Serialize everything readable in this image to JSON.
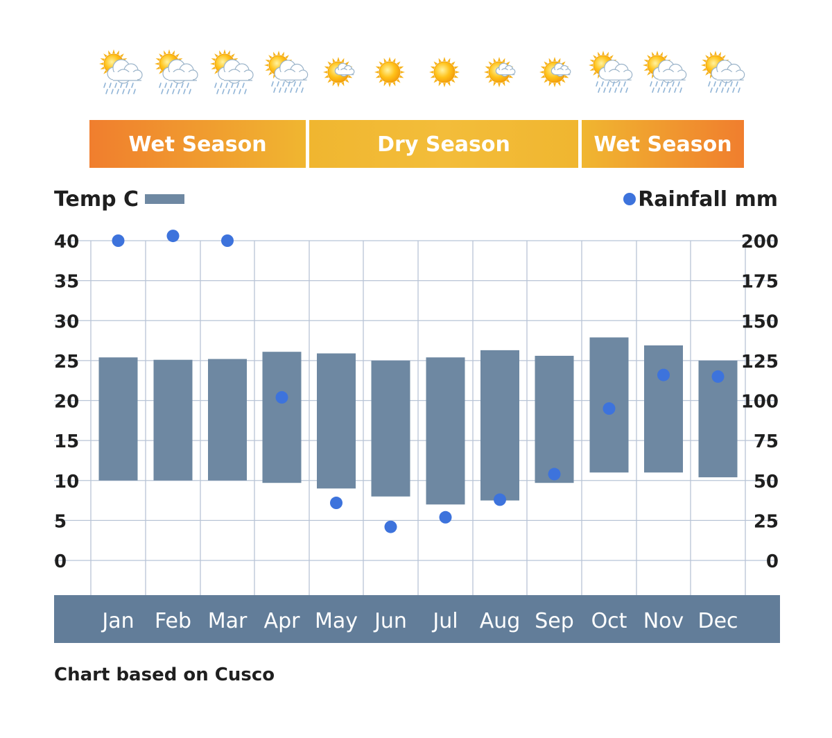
{
  "seasons": [
    {
      "label": "Wet Season"
    },
    {
      "label": "Dry Season"
    },
    {
      "label": "Wet Season"
    }
  ],
  "weather_icons": [
    "sun-cloud-rain-icon",
    "sun-cloud-rain-icon",
    "sun-cloud-rain-icon",
    "sun-cloud-icon",
    "sun-small-cloud-icon",
    "sun-icon",
    "sun-icon",
    "sun-small-cloud-icon",
    "sun-small-cloud-icon",
    "sun-cloud-icon",
    "sun-cloud-icon",
    "sun-cloud-icon"
  ],
  "colors": {
    "bar": "#6e88a2",
    "dot": "#3d73dc",
    "axis_band": "#627d99",
    "grid": "#b8c4d6",
    "season_orange": "#f07e2e",
    "season_yellow": "#f0b630"
  },
  "chart_data": {
    "type": "bar",
    "categories": [
      "Jan",
      "Feb",
      "Mar",
      "Apr",
      "May",
      "Jun",
      "Jul",
      "Aug",
      "Sep",
      "Oct",
      "Nov",
      "Dec"
    ],
    "series": [
      {
        "name": "Temp C",
        "kind": "floating-bar",
        "axis": "left",
        "low": [
          10,
          10,
          10,
          9.7,
          9,
          8,
          7,
          7.5,
          9.7,
          11,
          11,
          10.4
        ],
        "high": [
          25.4,
          25.1,
          25.2,
          26.1,
          25.9,
          25,
          25.4,
          26.3,
          25.6,
          27.9,
          26.9,
          25
        ]
      },
      {
        "name": "Rainfall mm",
        "kind": "scatter",
        "axis": "right",
        "values": [
          200,
          203,
          200,
          102,
          36,
          21,
          27,
          38,
          54,
          95,
          116,
          115
        ]
      }
    ],
    "left_axis": {
      "ticks": [
        "0",
        "5",
        "10",
        "15",
        "20",
        "25",
        "30",
        "35",
        "40"
      ],
      "range": [
        0,
        40
      ]
    },
    "right_axis": {
      "ticks": [
        "0",
        "25",
        "50",
        "75",
        "100",
        "125",
        "150",
        "175",
        "200"
      ],
      "range": [
        0,
        200
      ]
    },
    "legend": {
      "temp_label": "Temp C",
      "rain_label": "Rainfall mm",
      "placement": "top"
    },
    "grid": true
  },
  "footnote": "Chart based on Cusco"
}
